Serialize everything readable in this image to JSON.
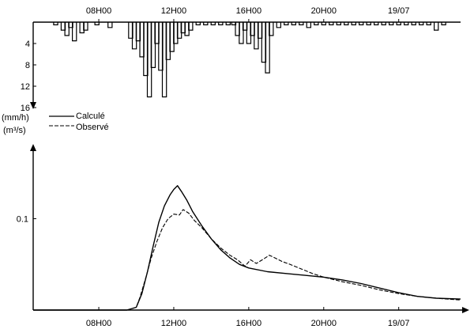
{
  "chart_data": [
    {
      "type": "bar",
      "role": "hyetograph",
      "ylabel": "(mm/h)",
      "y_inverted": true,
      "ylim": [
        0,
        16
      ],
      "y_ticks": [
        {
          "value": 4,
          "label": "4"
        },
        {
          "value": 8,
          "label": "8"
        },
        {
          "value": 12,
          "label": "12"
        },
        {
          "value": 16,
          "label": "16"
        }
      ],
      "x_ticks": [
        {
          "value": 8,
          "label": "08H00"
        },
        {
          "value": 12,
          "label": "12H00"
        },
        {
          "value": 16,
          "label": "16H00"
        },
        {
          "value": 20,
          "label": "20H00"
        },
        {
          "value": 24,
          "label": "19/07"
        }
      ],
      "xlim": [
        4.5,
        27.3
      ],
      "series": [
        {
          "x": [
            5.7,
            6.1,
            6.3,
            6.5,
            6.7,
            7.1,
            7.3,
            7.9,
            8.6,
            9.7,
            9.9,
            10.1,
            10.3,
            10.5,
            10.7,
            10.9,
            11.1,
            11.3,
            11.5,
            11.7,
            11.9,
            12.1,
            12.3,
            12.5,
            12.7,
            12.9,
            13.3,
            13.7,
            14.1,
            14.5,
            14.9,
            15.2,
            15.4,
            15.6,
            15.8,
            16.0,
            16.2,
            16.4,
            16.6,
            16.8,
            17.0,
            17.2,
            17.6,
            18.0,
            18.4,
            18.8,
            19.2,
            19.6,
            20.0,
            20.4,
            20.8,
            21.2,
            21.6,
            22.0,
            22.4,
            22.8,
            23.2,
            23.6,
            24.0,
            24.4,
            24.8,
            25.2,
            25.6,
            26.0,
            26.4
          ],
          "values": [
            0.5,
            1.5,
            2.5,
            1.0,
            3.5,
            2.0,
            1.5,
            0.5,
            1.0,
            3.0,
            5.0,
            3.5,
            6.5,
            10.0,
            14.0,
            8.5,
            4.0,
            9.0,
            14.0,
            7.0,
            5.5,
            4.0,
            3.0,
            2.0,
            2.5,
            1.5,
            0.5,
            0.5,
            0.5,
            0.5,
            0.5,
            0.5,
            2.5,
            4.0,
            1.5,
            4.0,
            2.5,
            5.0,
            3.0,
            7.5,
            9.5,
            2.5,
            1.0,
            0.5,
            0.5,
            0.5,
            1.0,
            0.5,
            0.5,
            0.5,
            0.5,
            0.5,
            0.5,
            0.5,
            0.5,
            0.5,
            0.5,
            0.5,
            0.5,
            0.5,
            0.5,
            0.5,
            0.5,
            1.5,
            0.5
          ]
        }
      ]
    },
    {
      "type": "line",
      "role": "hydrograph",
      "ylabel": "(m³/s)",
      "ylim": [
        0,
        0.18
      ],
      "y_ticks": [
        {
          "value": 0.1,
          "label": "0.1"
        }
      ],
      "x_ticks": [
        {
          "value": 8,
          "label": "08H00"
        },
        {
          "value": 12,
          "label": "12H00"
        },
        {
          "value": 16,
          "label": "16H00"
        },
        {
          "value": 20,
          "label": "20H00"
        },
        {
          "value": 24,
          "label": "19/07"
        }
      ],
      "xlim": [
        4.5,
        27.3
      ],
      "legend": {
        "position": "top-left"
      },
      "series": [
        {
          "name": "Calculé",
          "style": "solid",
          "x": [
            4.5,
            8.0,
            9.5,
            10.0,
            10.3,
            10.6,
            10.9,
            11.2,
            11.5,
            11.8,
            12.0,
            12.2,
            12.4,
            12.7,
            13.0,
            13.5,
            14.0,
            14.5,
            15.0,
            15.5,
            16.0,
            17.0,
            18.0,
            19.0,
            20.0,
            21.0,
            22.0,
            23.0,
            24.0,
            25.0,
            26.0,
            27.3
          ],
          "values": [
            0.0,
            0.0,
            0.0,
            0.003,
            0.018,
            0.042,
            0.07,
            0.096,
            0.114,
            0.126,
            0.132,
            0.136,
            0.13,
            0.12,
            0.108,
            0.092,
            0.078,
            0.066,
            0.057,
            0.05,
            0.046,
            0.042,
            0.04,
            0.038,
            0.036,
            0.033,
            0.029,
            0.024,
            0.019,
            0.015,
            0.013,
            0.012
          ]
        },
        {
          "name": "Observé",
          "style": "dashed",
          "x": [
            4.5,
            8.0,
            9.5,
            10.0,
            10.2,
            10.5,
            10.8,
            11.1,
            11.4,
            11.7,
            12.0,
            12.3,
            12.5,
            12.8,
            13.1,
            13.5,
            14.0,
            14.5,
            15.0,
            15.4,
            15.8,
            16.1,
            16.4,
            16.8,
            17.1,
            17.4,
            17.8,
            18.2,
            18.8,
            19.4,
            20.0,
            21.0,
            22.0,
            23.0,
            24.0,
            25.0,
            26.0,
            27.3
          ],
          "values": [
            0.0,
            0.0,
            0.0,
            0.003,
            0.014,
            0.035,
            0.057,
            0.075,
            0.09,
            0.1,
            0.105,
            0.104,
            0.11,
            0.106,
            0.098,
            0.09,
            0.078,
            0.068,
            0.06,
            0.055,
            0.048,
            0.055,
            0.051,
            0.056,
            0.06,
            0.057,
            0.053,
            0.05,
            0.045,
            0.04,
            0.036,
            0.031,
            0.027,
            0.022,
            0.018,
            0.015,
            0.013,
            0.011
          ]
        }
      ]
    }
  ]
}
